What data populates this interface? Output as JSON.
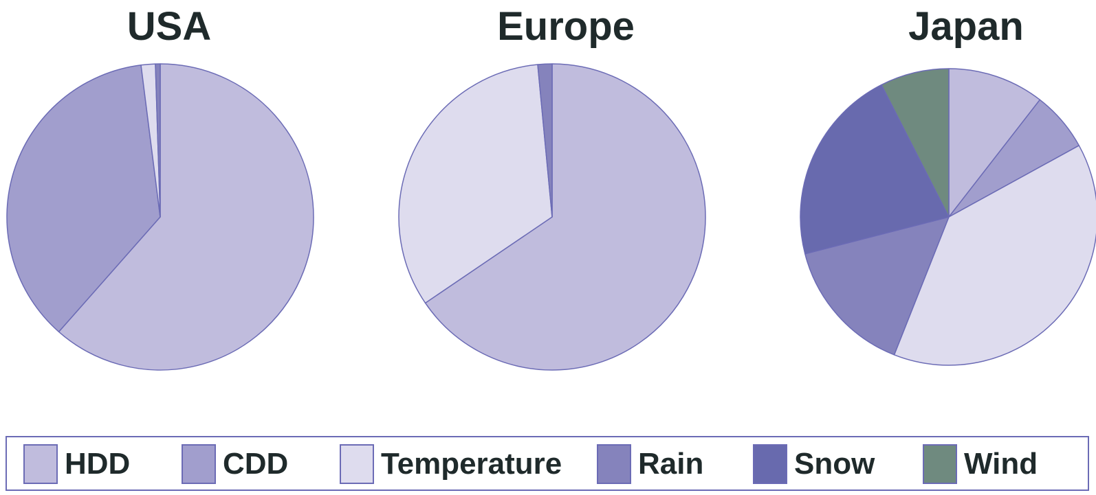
{
  "chart_data": [
    {
      "type": "pie",
      "title": "USA",
      "categories": [
        "HDD",
        "CDD",
        "Temperature",
        "Rain",
        "Snow",
        "Wind"
      ],
      "values": [
        61.5,
        36.5,
        1.5,
        0.5,
        0,
        0
      ]
    },
    {
      "type": "pie",
      "title": "Europe",
      "categories": [
        "HDD",
        "CDD",
        "Temperature",
        "Rain",
        "Snow",
        "Wind"
      ],
      "values": [
        65.5,
        0,
        33,
        1.5,
        0,
        0
      ]
    },
    {
      "type": "pie",
      "title": "Japan",
      "categories": [
        "HDD",
        "CDD",
        "Temperature",
        "Rain",
        "Snow",
        "Wind"
      ],
      "values": [
        10.5,
        6.5,
        39,
        15,
        21.5,
        7.5
      ]
    }
  ],
  "legend": {
    "position": "bottom",
    "items": [
      {
        "label": "HDD",
        "color": "#c0bcdd"
      },
      {
        "label": "CDD",
        "color": "#a19ecd"
      },
      {
        "label": "Temperature",
        "color": "#dedcee"
      },
      {
        "label": "Rain",
        "color": "#8583bc"
      },
      {
        "label": "Snow",
        "color": "#686aae"
      },
      {
        "label": "Wind",
        "color": "#6f8a7f"
      }
    ]
  },
  "colors": {
    "stroke": "#6b6bb5",
    "title_text": "#1f2a2b"
  }
}
